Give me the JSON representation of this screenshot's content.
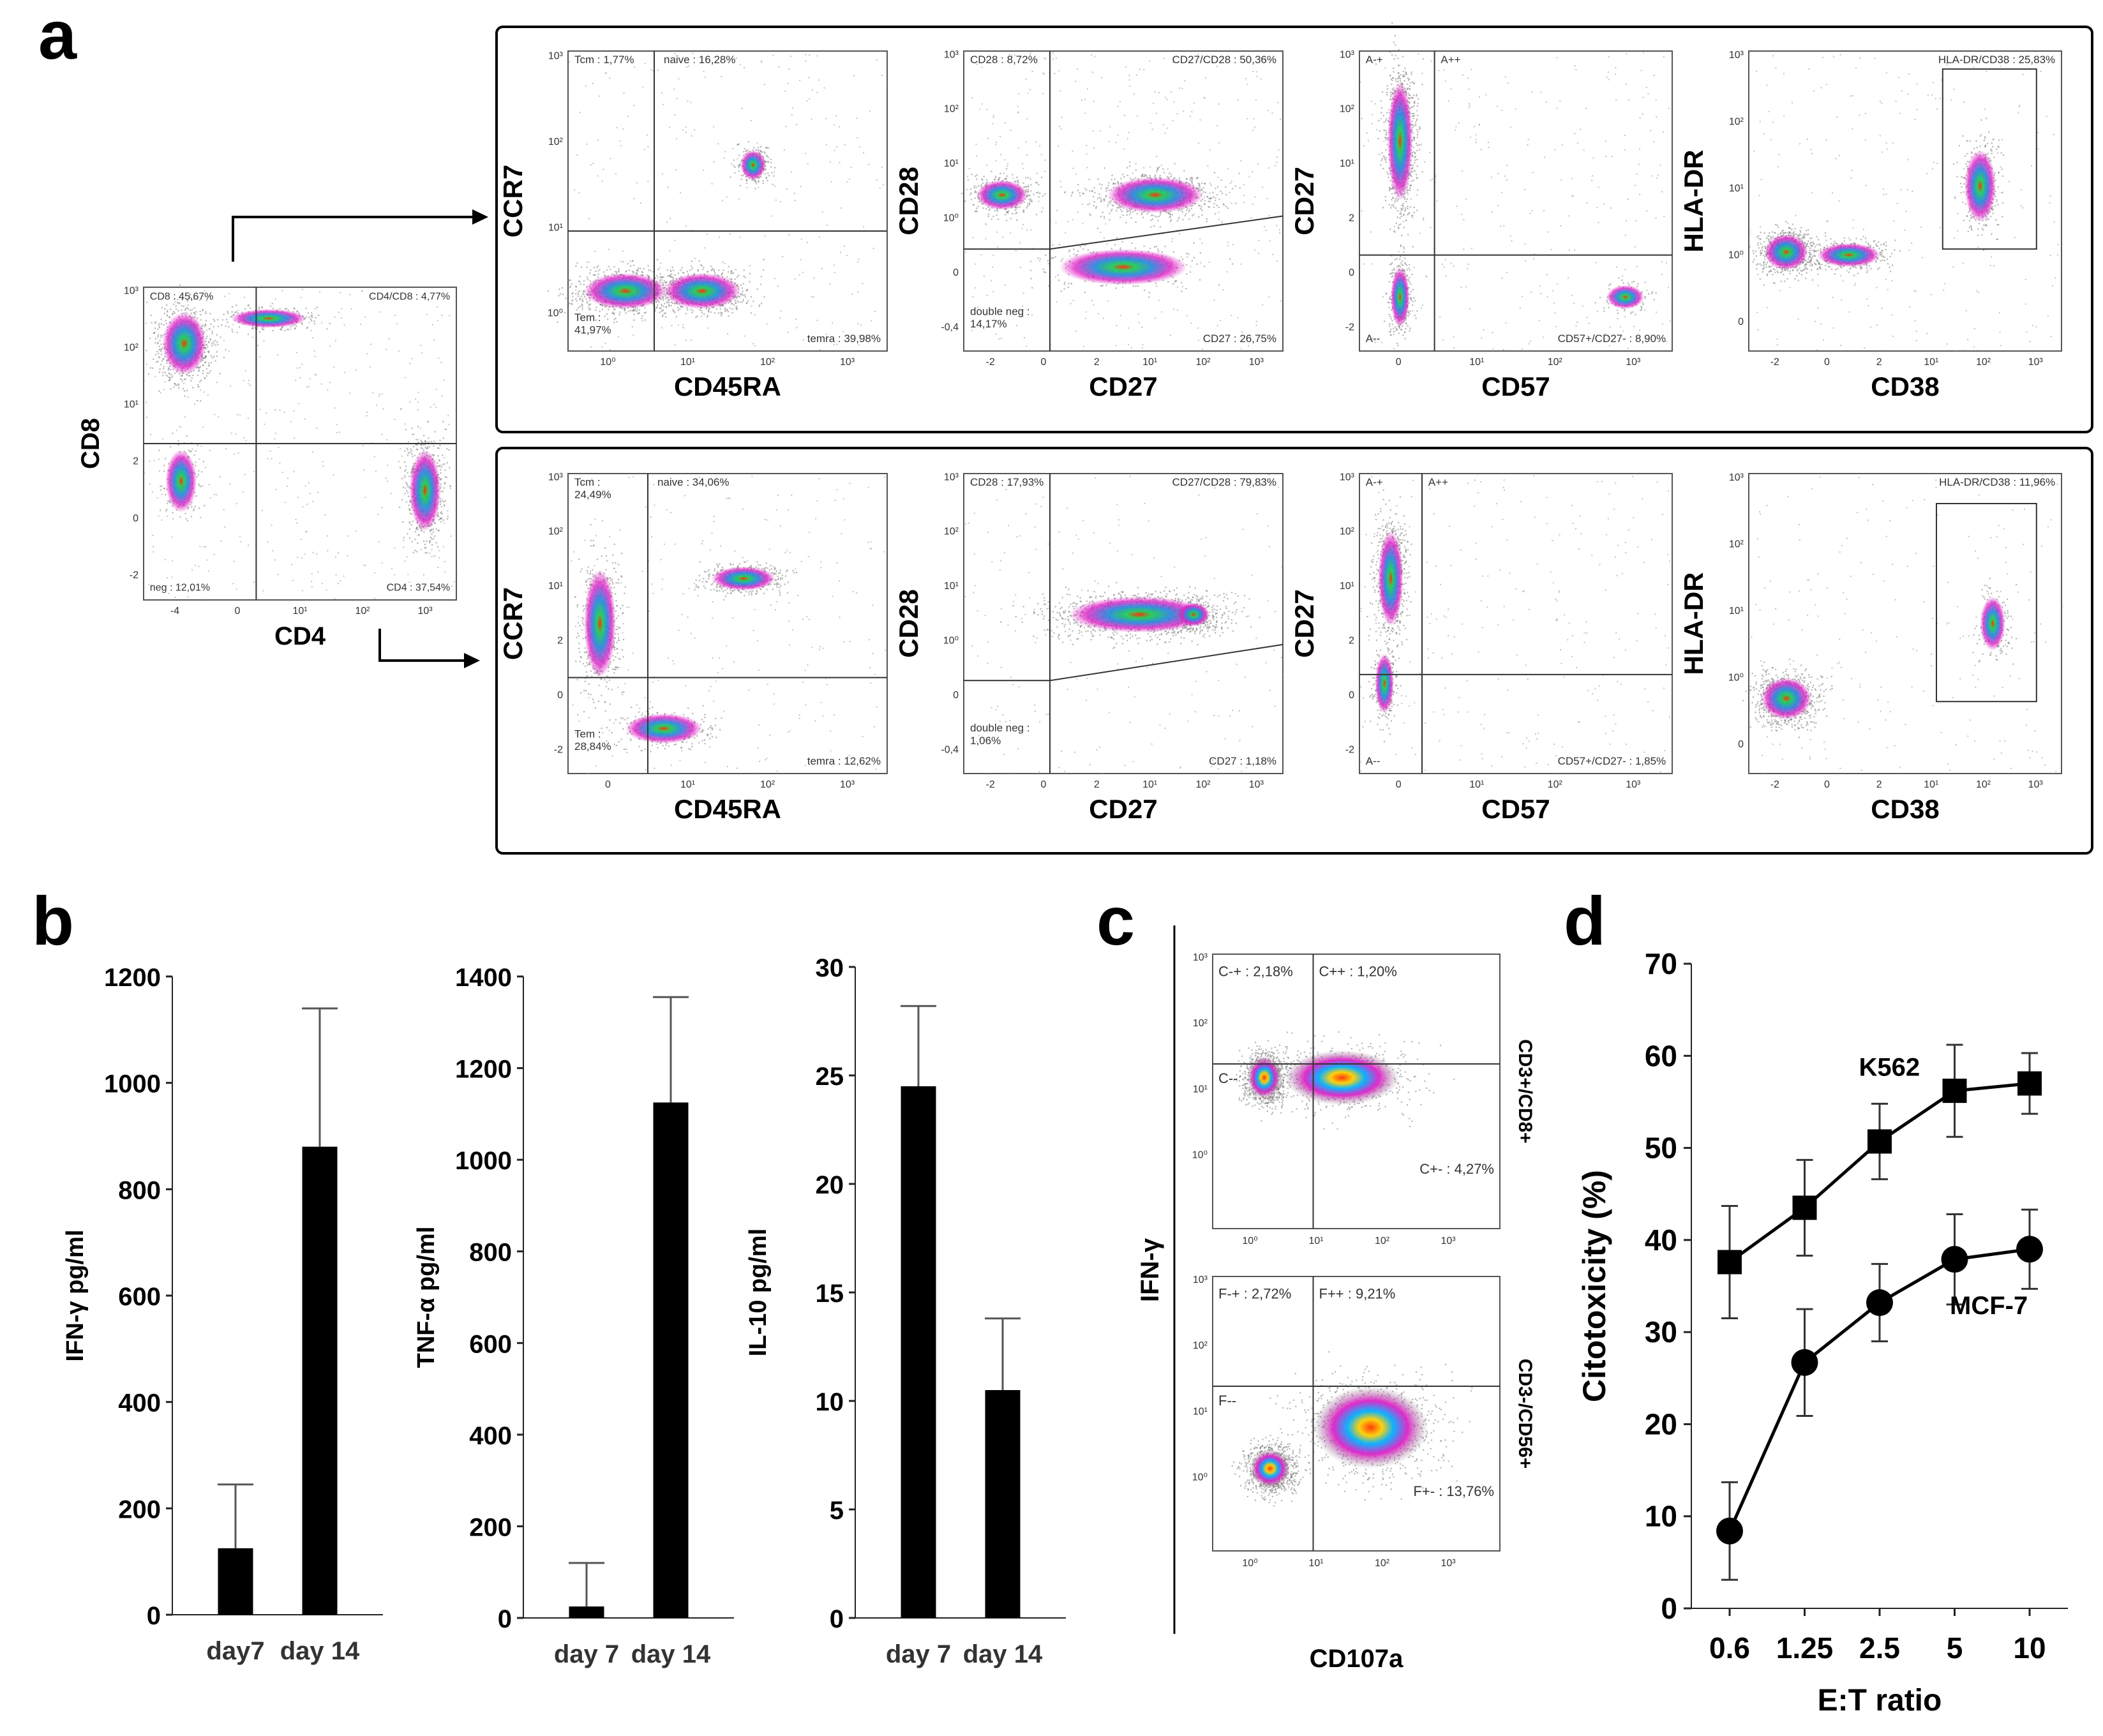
{
  "panel_letters": {
    "a": "a",
    "b": "b",
    "c": "c",
    "d": "d"
  },
  "chart_data": [
    {
      "id": "a-parent",
      "type": "scatter",
      "kind": "flow-cytometry-quadrant",
      "xlabel": "CD4",
      "ylabel": "CD8",
      "xticks": [
        "-4",
        "0",
        "10¹",
        "10²",
        "10³"
      ],
      "yticks": [
        "10³",
        "10²",
        "10¹",
        "2",
        "0",
        "-2"
      ],
      "gates": [
        "CD8 : 45,67%",
        "CD4/CD8 : 4,77%",
        "neg : 12,01%",
        "CD4 : 37,54%"
      ]
    },
    {
      "id": "a-cd8-ccr7",
      "type": "scatter",
      "kind": "flow-cytometry-quadrant",
      "population": "CD8",
      "xlabel": "CD45RA",
      "ylabel": "CCR7",
      "xticks": [
        "10⁰",
        "10¹",
        "10²",
        "10³"
      ],
      "yticks": [
        "10³",
        "10²",
        "10¹",
        "10⁰"
      ],
      "gates": [
        "Tcm : 1,77%",
        "naive : 16,28%",
        "Tem :\n41,97%",
        "temra : 39,98%"
      ]
    },
    {
      "id": "a-cd8-cd28",
      "type": "scatter",
      "kind": "flow-cytometry-quadrant",
      "population": "CD8",
      "xlabel": "CD27",
      "ylabel": "CD28",
      "xticks": [
        "-2",
        "0",
        "2",
        "10¹",
        "10²",
        "10³"
      ],
      "yticks": [
        "10³",
        "10²",
        "10¹",
        "10⁰",
        "0",
        "-0,4"
      ],
      "gates": [
        "CD28 : 8,72%",
        "CD27/CD28 : 50,36%",
        "double neg :\n14,17%",
        "CD27 : 26,75%"
      ]
    },
    {
      "id": "a-cd8-cd57",
      "type": "scatter",
      "kind": "flow-cytometry-quadrant",
      "population": "CD8",
      "xlabel": "CD57",
      "ylabel": "CD27",
      "xticks": [
        "0",
        "10¹",
        "10²",
        "10³"
      ],
      "yticks": [
        "10³",
        "10²",
        "10¹",
        "2",
        "0",
        "-2"
      ],
      "gates": [
        "A-+",
        "A++",
        "A--",
        "CD57+/CD27- : 8,90%"
      ]
    },
    {
      "id": "a-cd8-hladr",
      "type": "scatter",
      "kind": "flow-cytometry-gate",
      "population": "CD8",
      "xlabel": "CD38",
      "ylabel": "HLA-DR",
      "xticks": [
        "-2",
        "0",
        "2",
        "10¹",
        "10²",
        "10³"
      ],
      "yticks": [
        "10³",
        "10²",
        "10¹",
        "10⁰",
        "0"
      ],
      "gates": [
        "HLA-DR/CD38 : 25,83%"
      ]
    },
    {
      "id": "a-cd4-ccr7",
      "type": "scatter",
      "kind": "flow-cytometry-quadrant",
      "population": "CD4",
      "xlabel": "CD45RA",
      "ylabel": "CCR7",
      "xticks": [
        "0",
        "10¹",
        "10²",
        "10³"
      ],
      "yticks": [
        "10³",
        "10²",
        "10¹",
        "2",
        "0",
        "-2"
      ],
      "gates": [
        "Tcm :\n24,49%",
        "naive : 34,06%",
        "Tem :\n28,84%",
        "temra : 12,62%"
      ]
    },
    {
      "id": "a-cd4-cd28",
      "type": "scatter",
      "kind": "flow-cytometry-quadrant",
      "population": "CD4",
      "xlabel": "CD27",
      "ylabel": "CD28",
      "xticks": [
        "-2",
        "0",
        "2",
        "10¹",
        "10²",
        "10³"
      ],
      "yticks": [
        "10³",
        "10²",
        "10¹",
        "10⁰",
        "0",
        "-0,4"
      ],
      "gates": [
        "CD28 : 17,93%",
        "CD27/CD28 : 79,83%",
        "double neg :\n1,06%",
        "CD27 : 1,18%"
      ]
    },
    {
      "id": "a-cd4-cd57",
      "type": "scatter",
      "kind": "flow-cytometry-quadrant",
      "population": "CD4",
      "xlabel": "CD57",
      "ylabel": "CD27",
      "xticks": [
        "0",
        "10¹",
        "10²",
        "10³"
      ],
      "yticks": [
        "10³",
        "10²",
        "10¹",
        "2",
        "0",
        "-2"
      ],
      "gates": [
        "A-+",
        "A++",
        "A--",
        "CD57+/CD27- : 1,85%"
      ]
    },
    {
      "id": "a-cd4-hladr",
      "type": "scatter",
      "kind": "flow-cytometry-gate",
      "population": "CD4",
      "xlabel": "CD38",
      "ylabel": "HLA-DR",
      "xticks": [
        "-2",
        "0",
        "2",
        "10¹",
        "10²",
        "10³"
      ],
      "yticks": [
        "10³",
        "10²",
        "10¹",
        "10⁰",
        "0"
      ],
      "gates": [
        "HLA-DR/CD38 : 11,96%"
      ]
    },
    {
      "id": "b-ifng",
      "type": "bar",
      "categories": [
        "day7",
        "day 14"
      ],
      "values": [
        125,
        880
      ],
      "errors": [
        120,
        260
      ],
      "ylabel": "IFN-γ pg/ml",
      "ylim": [
        0,
        1200
      ],
      "yticks": [
        0,
        200,
        400,
        600,
        800,
        1000,
        1200
      ]
    },
    {
      "id": "b-tnfa",
      "type": "bar",
      "categories": [
        "day 7",
        "day 14"
      ],
      "values": [
        25,
        1125
      ],
      "errors": [
        95,
        230
      ],
      "ylabel": "TNF-α pg/ml",
      "ylim": [
        0,
        1400
      ],
      "yticks": [
        0,
        200,
        400,
        600,
        800,
        1000,
        1200,
        1400
      ]
    },
    {
      "id": "b-il10",
      "type": "bar",
      "categories": [
        "day 7",
        "day 14"
      ],
      "values": [
        24.5,
        10.5
      ],
      "errors": [
        3.7,
        3.3
      ],
      "ylabel": "IL-10 pg/ml",
      "ylim": [
        0,
        30
      ],
      "yticks": [
        0,
        5,
        10,
        15,
        20,
        25,
        30
      ]
    },
    {
      "id": "c",
      "type": "scatter",
      "kind": "flow-cytometry-quadrant",
      "xlabel": "CD107a",
      "ylabel": "IFN-γ",
      "subplots": [
        {
          "side_label": "CD3+/CD8+",
          "gates": [
            "C-+ : 2,18%",
            "C++ : 1,20%",
            "C--",
            "C+- : 4,27%"
          ]
        },
        {
          "side_label": "CD3-/CD56+",
          "gates": [
            "F-+ : 2,72%",
            "F++ : 9,21%",
            "F--",
            "F+- : 13,76%"
          ]
        }
      ]
    },
    {
      "id": "d",
      "type": "line",
      "x": [
        "0.6",
        "1.25",
        "2.5",
        "5",
        "10"
      ],
      "series": [
        {
          "name": "K562",
          "values": [
            37.6,
            43.5,
            50.7,
            56.2,
            57.0
          ],
          "errors": [
            6.1,
            5.2,
            4.1,
            5.0,
            3.3
          ]
        },
        {
          "name": "MCF-7",
          "values": [
            8.4,
            26.7,
            33.2,
            37.9,
            39.0
          ],
          "errors": [
            5.3,
            5.8,
            4.2,
            4.9,
            4.3
          ]
        }
      ],
      "xlabel": "E:T ratio",
      "ylabel": "Citotoxicity (%)",
      "ylim": [
        0,
        70
      ],
      "yticks": [
        0,
        10,
        20,
        30,
        40,
        50,
        60,
        70
      ]
    }
  ]
}
